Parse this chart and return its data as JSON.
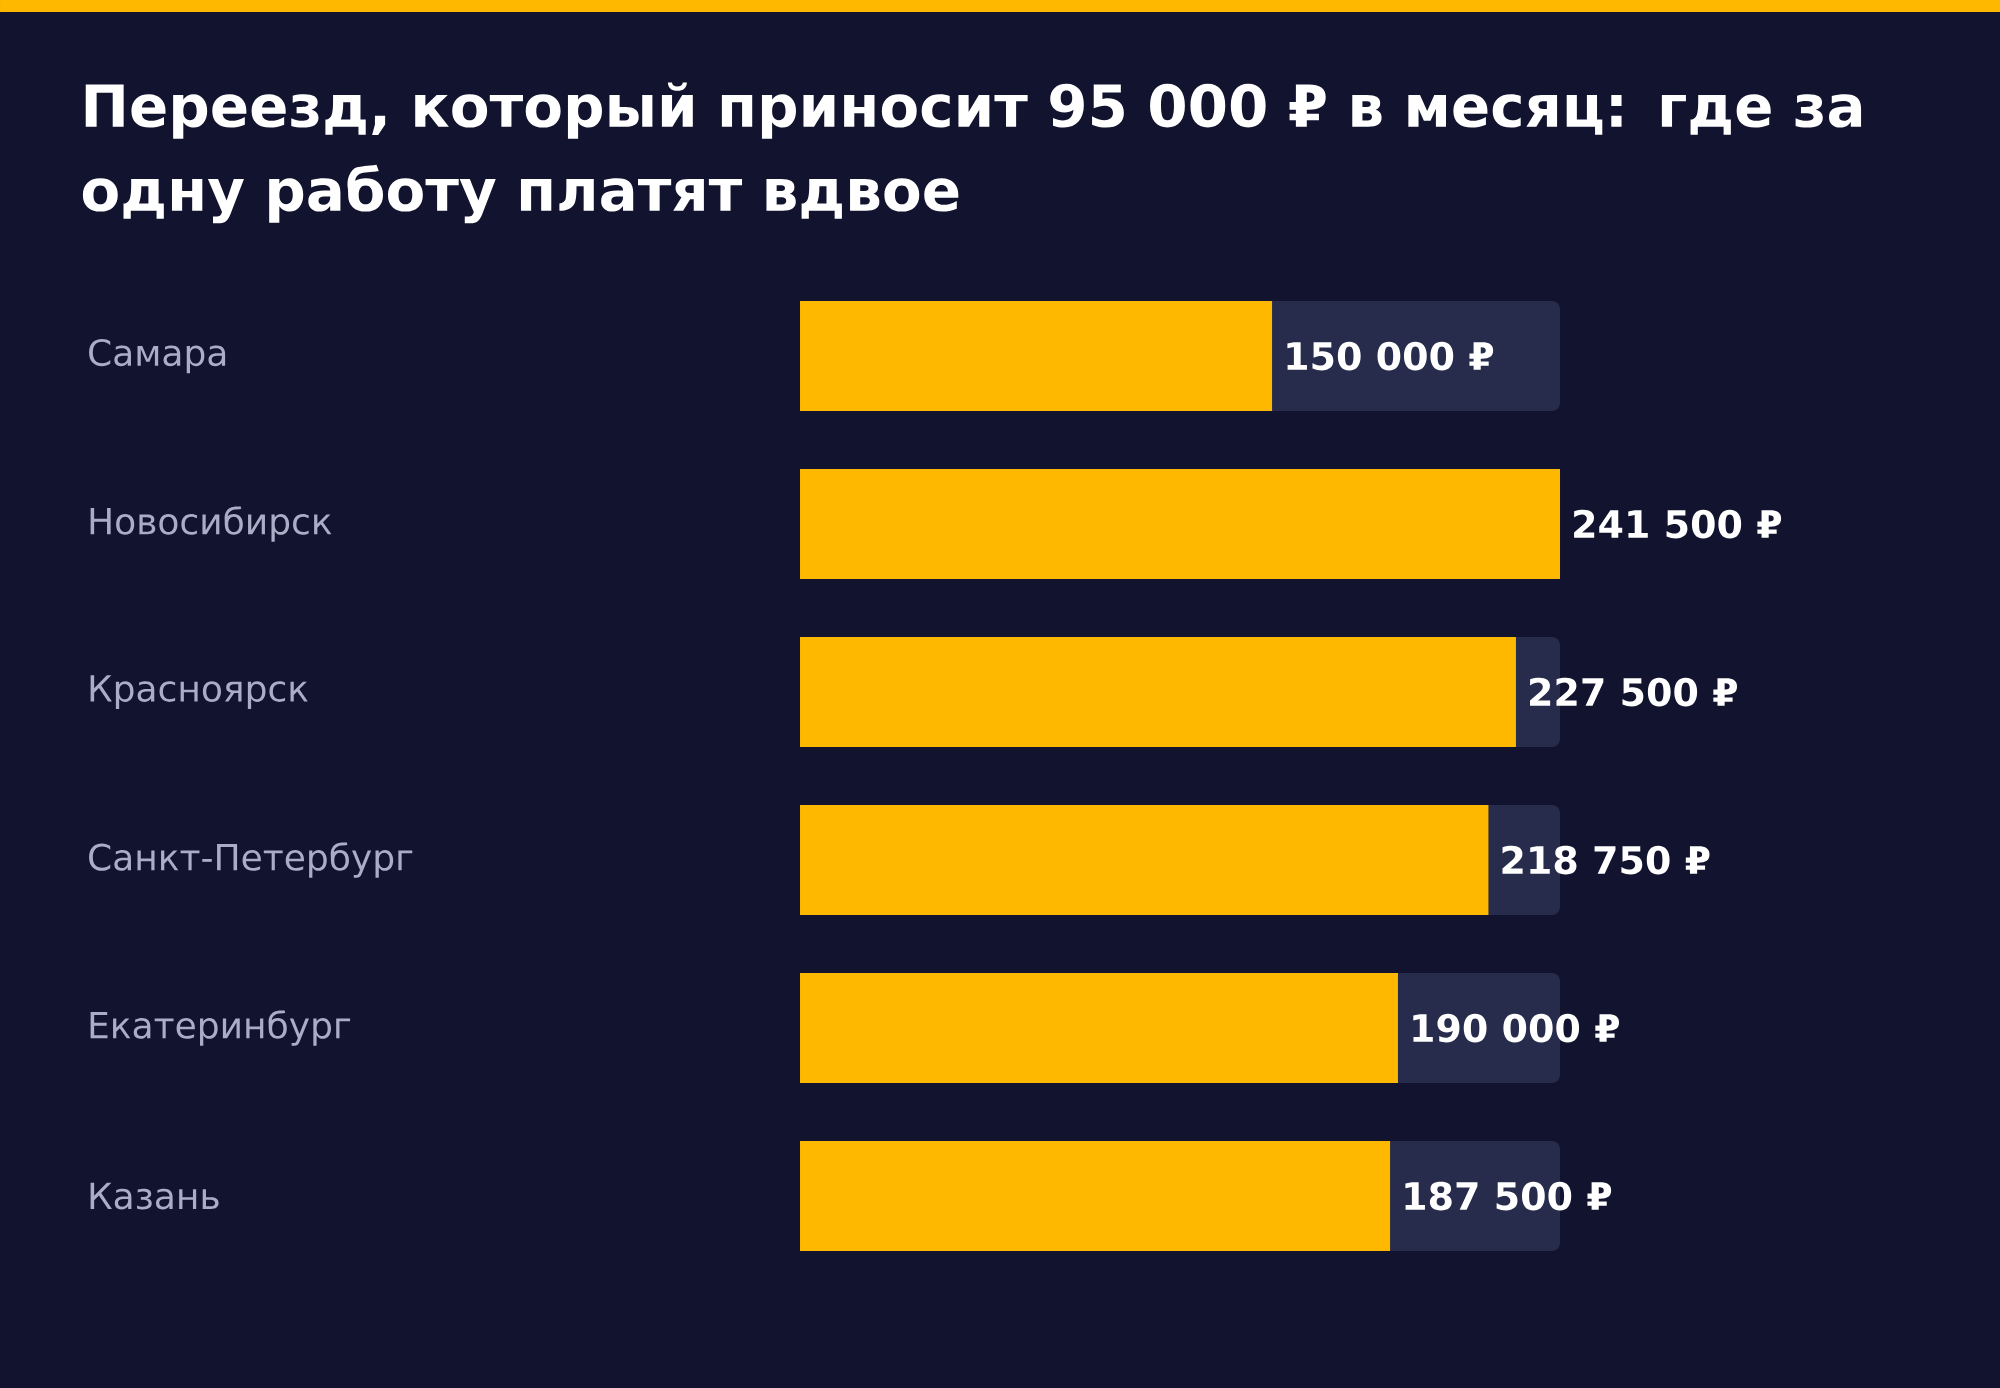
{
  "chart_data": {
    "type": "bar",
    "orientation": "horizontal",
    "title": "Переезд, который приносит 95 000 ₽ в месяц: где за одну работу платят вдвое",
    "categories": [
      "Самара",
      "Новосибирск",
      "Красноярск",
      "Санкт-Петербург",
      "Екатеринбург",
      "Казань"
    ],
    "values": [
      150000,
      241500,
      227500,
      218750,
      190000,
      187500
    ],
    "value_labels": [
      "150 000 ₽",
      "241 500 ₽",
      "227 500 ₽",
      "218 750 ₽",
      "190 000 ₽",
      "187 500 ₽"
    ],
    "color": "#ffb800"
  }
}
